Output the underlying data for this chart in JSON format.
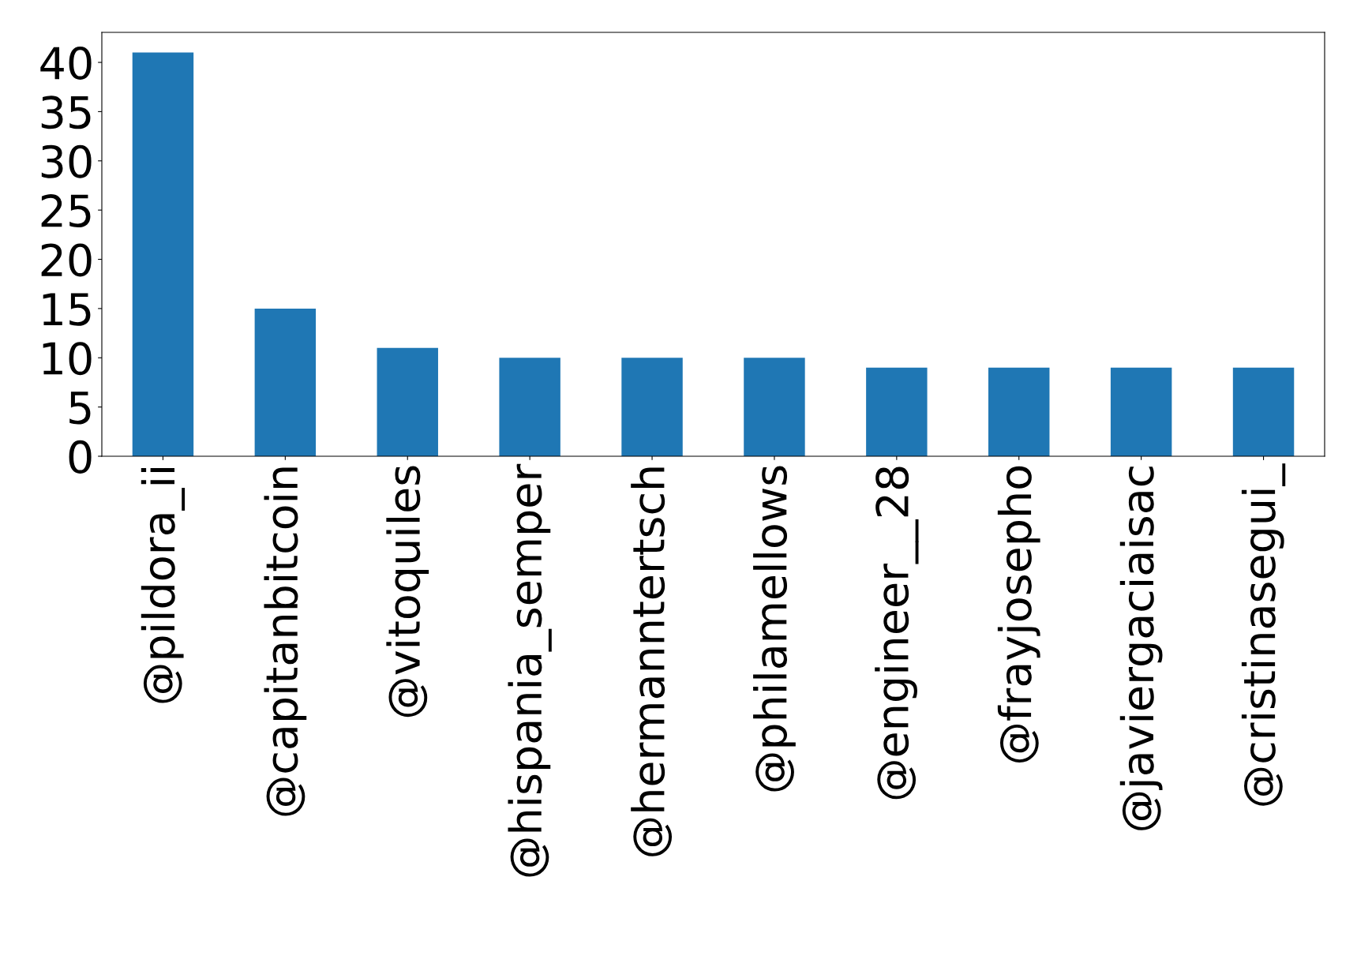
{
  "chart_data": {
    "type": "bar",
    "categories": [
      "@pildora_ii",
      "@capitanbitcoin",
      "@vitoquiles",
      "@hispania_semper",
      "@hermanntertsch",
      "@philamellows",
      "@engineer__28",
      "@frayjosepho",
      "@javiergaciaisac",
      "@cristinasegui_"
    ],
    "values": [
      41,
      15,
      11,
      10,
      10,
      10,
      9,
      9,
      9,
      9
    ],
    "color": "#1f77b4",
    "ylim": [
      0,
      43.05
    ],
    "yticks": [
      0,
      5,
      10,
      15,
      20,
      25,
      30,
      35,
      40
    ],
    "grid": false,
    "legend": false
  }
}
